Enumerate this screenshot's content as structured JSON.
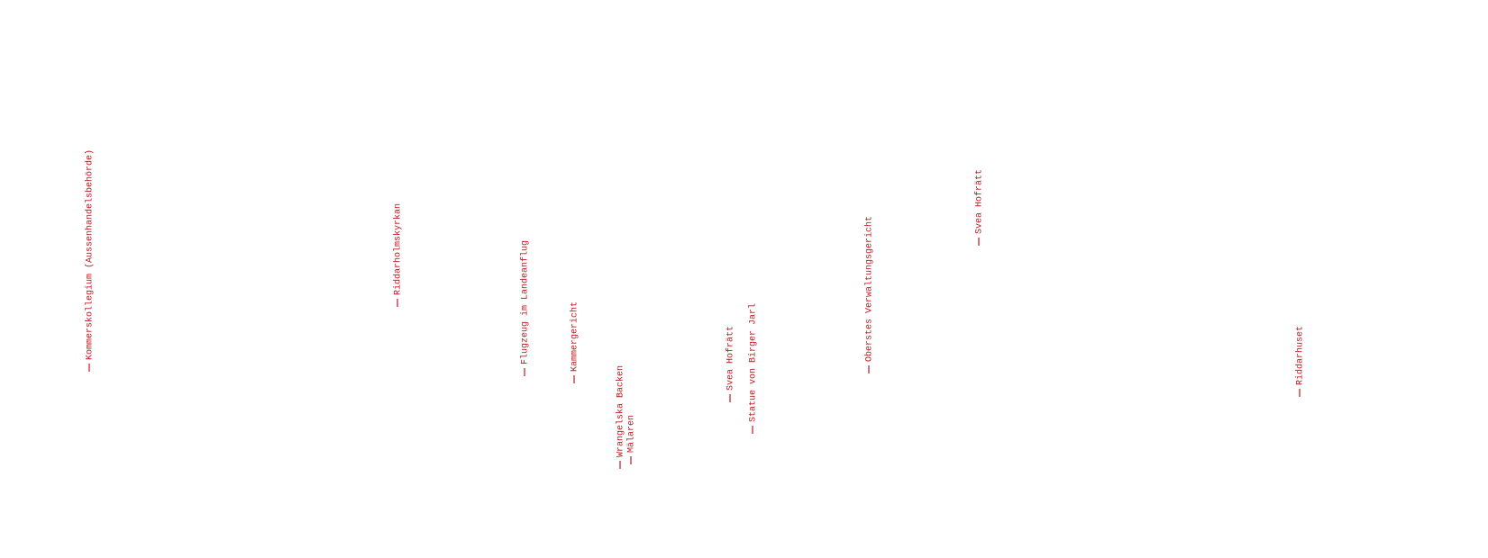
{
  "labels": [
    "Kommerskollegium (Aussenhandelsbehörde)",
    "Riddarholmskyrkan",
    "Flugzeug im Landeanflug",
    "Kammergericht",
    "Wrangelska Backen",
    "Mälaren",
    "Svea Hofrätt",
    "Statue von Birger Jarl",
    "Oberstes Verwaltungsgericht",
    "Svea Hofrätt",
    "Riddarhuset"
  ]
}
